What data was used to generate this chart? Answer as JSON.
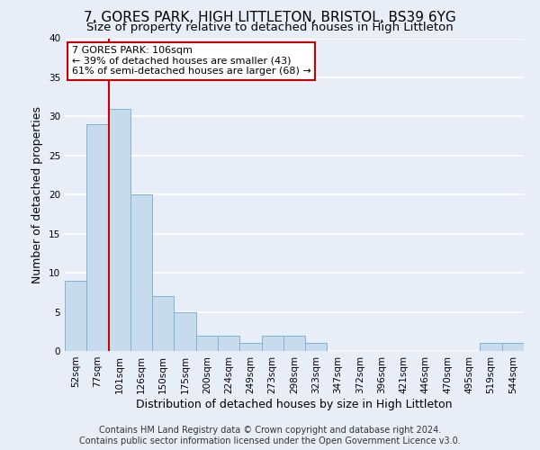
{
  "title": "7, GORES PARK, HIGH LITTLETON, BRISTOL, BS39 6YG",
  "subtitle": "Size of property relative to detached houses in High Littleton",
  "xlabel": "Distribution of detached houses by size in High Littleton",
  "ylabel": "Number of detached properties",
  "bin_labels": [
    "52sqm",
    "77sqm",
    "101sqm",
    "126sqm",
    "150sqm",
    "175sqm",
    "200sqm",
    "224sqm",
    "249sqm",
    "273sqm",
    "298sqm",
    "323sqm",
    "347sqm",
    "372sqm",
    "396sqm",
    "421sqm",
    "446sqm",
    "470sqm",
    "495sqm",
    "519sqm",
    "544sqm"
  ],
  "bar_values": [
    9,
    29,
    31,
    20,
    7,
    5,
    2,
    2,
    1,
    2,
    2,
    1,
    0,
    0,
    0,
    0,
    0,
    0,
    0,
    1,
    1
  ],
  "bar_color": "#c6dcec",
  "bar_edge_color": "#7fb3d3",
  "highlight_line_color": "#cc0000",
  "ylim": [
    0,
    40
  ],
  "yticks": [
    0,
    5,
    10,
    15,
    20,
    25,
    30,
    35,
    40
  ],
  "annotation_title": "7 GORES PARK: 106sqm",
  "annotation_line1": "← 39% of detached houses are smaller (43)",
  "annotation_line2": "61% of semi-detached houses are larger (68) →",
  "annotation_box_color": "#ffffff",
  "annotation_box_edge": "#cc0000",
  "footer_line1": "Contains HM Land Registry data © Crown copyright and database right 2024.",
  "footer_line2": "Contains public sector information licensed under the Open Government Licence v3.0.",
  "background_color": "#e8eef8",
  "grid_color": "#ffffff",
  "title_fontsize": 11,
  "subtitle_fontsize": 9.5,
  "axis_label_fontsize": 9,
  "tick_fontsize": 7.5,
  "annotation_fontsize": 8,
  "footer_fontsize": 7
}
